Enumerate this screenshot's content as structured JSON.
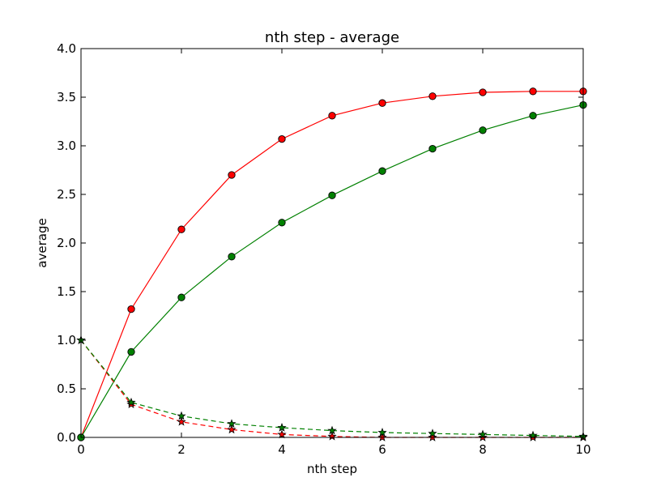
{
  "chart_data": {
    "type": "line",
    "title": "nth step - average",
    "xlabel": "nth step",
    "ylabel": "average",
    "xlim": [
      0,
      10
    ],
    "ylim": [
      0,
      4.0
    ],
    "xticks": [
      0,
      2,
      4,
      6,
      8,
      10
    ],
    "xtick_labels": [
      "0",
      "2",
      "4",
      "6",
      "8",
      "10"
    ],
    "yticks": [
      0.0,
      0.5,
      1.0,
      1.5,
      2.0,
      2.5,
      3.0,
      3.5,
      4.0
    ],
    "ytick_labels": [
      "0.0",
      "0.5",
      "1.0",
      "1.5",
      "2.0",
      "2.5",
      "3.0",
      "3.5",
      "4.0"
    ],
    "grid": false,
    "x": [
      0,
      1,
      2,
      3,
      4,
      5,
      6,
      7,
      8,
      9,
      10
    ],
    "series": [
      {
        "color": "#ff0000",
        "line_style": "solid",
        "marker": "circle",
        "values": [
          0.0,
          1.32,
          2.14,
          2.7,
          3.07,
          3.31,
          3.44,
          3.51,
          3.55,
          3.56,
          3.56
        ]
      },
      {
        "color": "#008000",
        "line_style": "solid",
        "marker": "circle",
        "values": [
          0.0,
          0.88,
          1.44,
          1.86,
          2.21,
          2.49,
          2.74,
          2.97,
          3.16,
          3.31,
          3.42
        ]
      },
      {
        "color": "#ff0000",
        "line_style": "dashed",
        "marker": "star",
        "values": [
          1.0,
          0.34,
          0.16,
          0.08,
          0.03,
          0.01,
          0.0,
          0.0,
          0.0,
          0.0,
          0.0
        ]
      },
      {
        "color": "#008000",
        "line_style": "dashed",
        "marker": "star",
        "values": [
          1.0,
          0.36,
          0.22,
          0.14,
          0.1,
          0.07,
          0.05,
          0.04,
          0.03,
          0.02,
          0.01
        ]
      }
    ]
  }
}
